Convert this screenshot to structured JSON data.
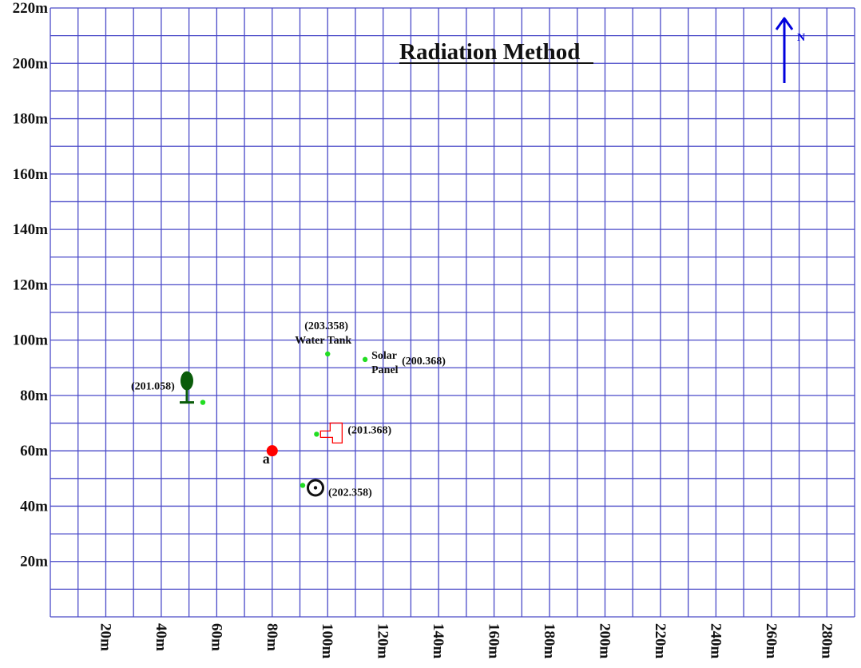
{
  "title": "Radiation Method",
  "north_label": "N",
  "colors": {
    "grid": "#4a4ac8",
    "north_arrow": "#0000dd",
    "station": "#ff0000",
    "points": "#22dd22",
    "tree": "#0a5c0a",
    "building": "#ff0000"
  },
  "chart_data": {
    "type": "scatter",
    "xlim": [
      0,
      290
    ],
    "ylim": [
      0,
      220
    ],
    "grid": true,
    "x_ticks": [
      "20m",
      "40m",
      "60m",
      "80m",
      "100m",
      "120m",
      "140m",
      "160m",
      "180m",
      "200m",
      "220m",
      "240m",
      "260m",
      "280m"
    ],
    "y_ticks": [
      "20m",
      "40m",
      "60m",
      "80m",
      "100m",
      "120m",
      "140m",
      "160m",
      "180m",
      "200m",
      "220m"
    ],
    "station": {
      "label": "a",
      "x": 80,
      "y": 60
    },
    "features": [
      {
        "name": "tree",
        "label": "(201.058)",
        "point": [
          55,
          77.5
        ],
        "icon": "tree-icon"
      },
      {
        "name": "water-tank",
        "label": "(203.358)",
        "label2": "Water Tank",
        "point": [
          100,
          95
        ],
        "icon": "none"
      },
      {
        "name": "solar-panel",
        "label": "(200.368)",
        "label2": "Solar",
        "label3": "Panel",
        "point": [
          113.5,
          93
        ],
        "icon": "none"
      },
      {
        "name": "building",
        "label": "(201.368)",
        "point": [
          96,
          66
        ],
        "icon": "building-outline-icon"
      },
      {
        "name": "well",
        "label": "(202.358)",
        "point": [
          91,
          47.5
        ],
        "icon": "well-icon"
      }
    ]
  }
}
